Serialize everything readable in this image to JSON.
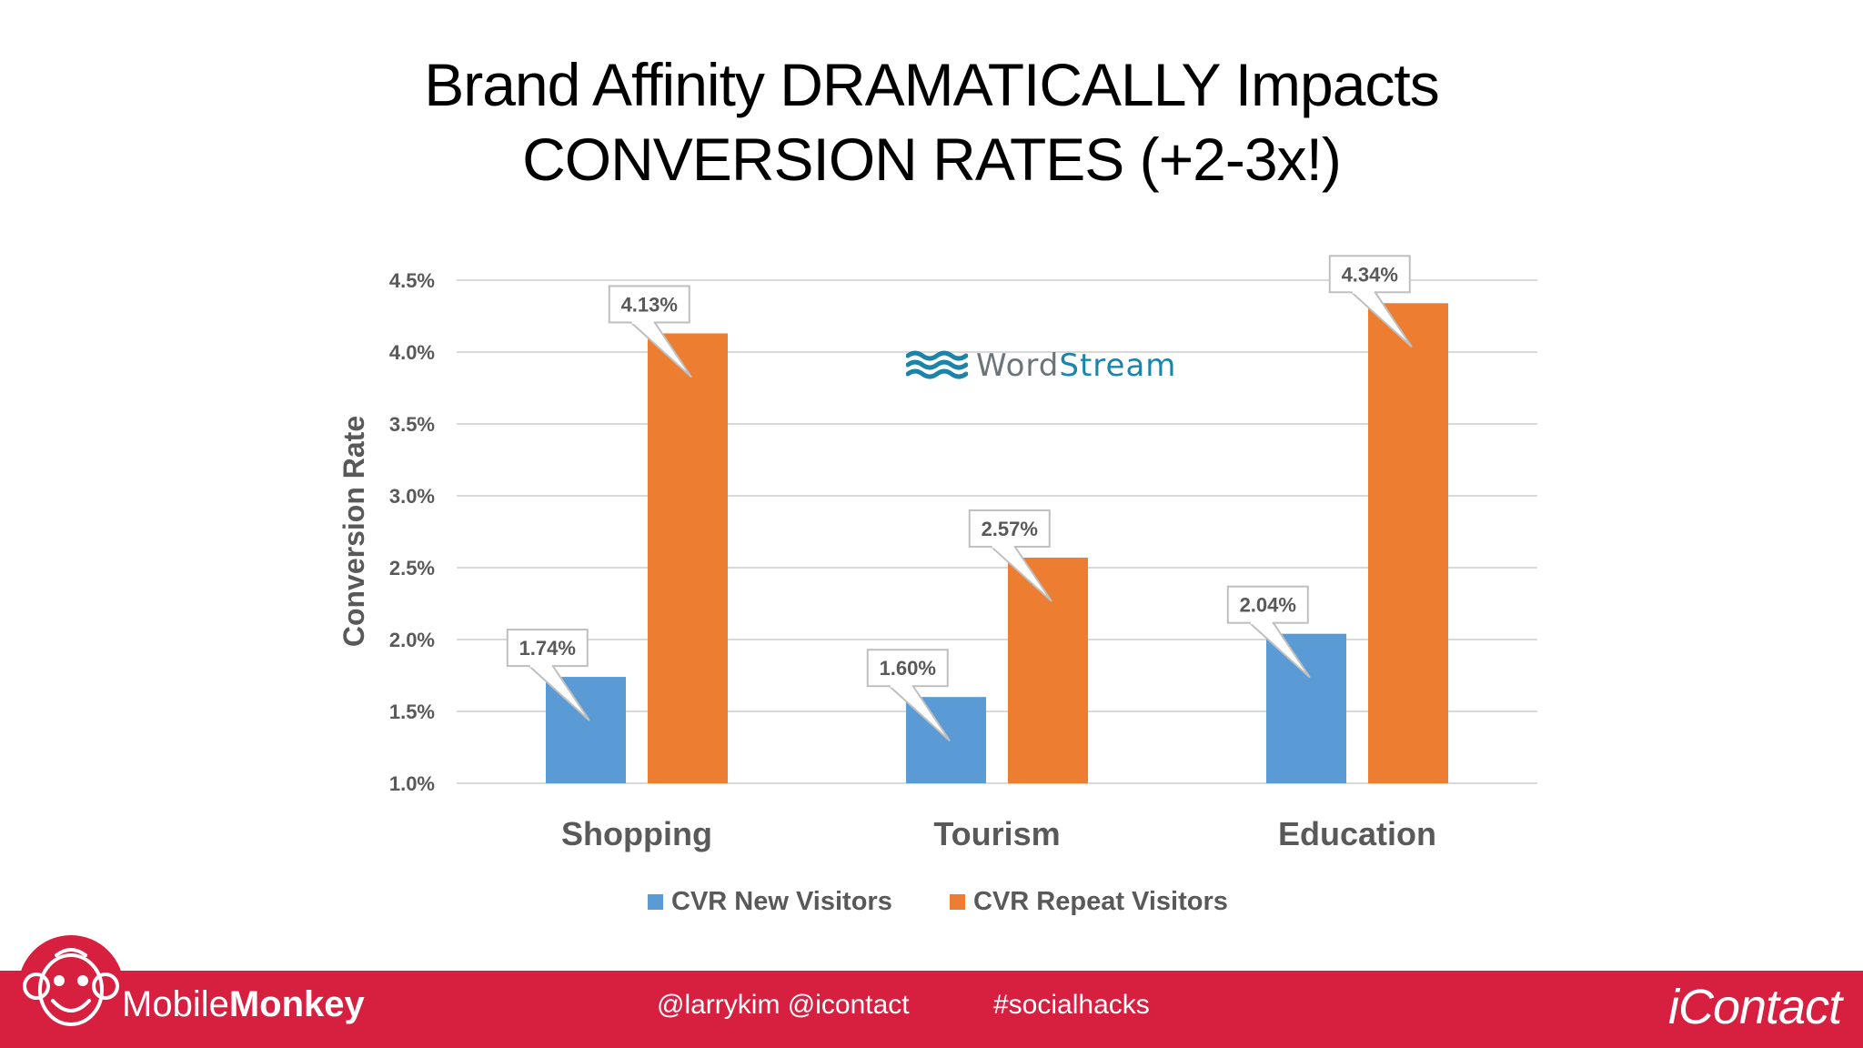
{
  "slide": {
    "title_line1": "Brand Affinity DRAMATICALLY Impacts",
    "title_line2": "CONVERSION RATES (+2-3x!)"
  },
  "watermark": {
    "part1": "Word",
    "part2": "Stream",
    "icon": "wave-icon",
    "colors": {
      "wave": "#1b84a8",
      "word": "#6b7478",
      "stream": "#1b84a8"
    }
  },
  "chart_data": {
    "type": "bar",
    "categories": [
      "Shopping",
      "Tourism",
      "Education"
    ],
    "series": [
      {
        "name": "CVR New Visitors",
        "values": [
          1.74,
          1.6,
          2.04
        ],
        "labels": [
          "1.74%",
          "1.60%",
          "2.04%"
        ],
        "color": "#5b9bd5"
      },
      {
        "name": "CVR Repeat Visitors",
        "values": [
          4.13,
          2.57,
          4.34
        ],
        "labels": [
          "4.13%",
          "2.57%",
          "4.34%"
        ],
        "color": "#ed7d31"
      }
    ],
    "xlabel": "",
    "ylabel": "Conversion Rate",
    "ylim": [
      1.0,
      4.5
    ],
    "yticks": [
      1.0,
      1.5,
      2.0,
      2.5,
      3.0,
      3.5,
      4.0,
      4.5
    ],
    "ytick_labels": [
      "1.0%",
      "1.5%",
      "2.0%",
      "2.5%",
      "3.0%",
      "3.5%",
      "4.0%",
      "4.5%"
    ],
    "grid": true,
    "legend_position": "bottom"
  },
  "footer": {
    "brand_left_light": "Mobile",
    "brand_left_bold": "Monkey",
    "handles": "@larrykim  @icontact",
    "hashtag": "#socialhacks",
    "brand_right": "iContact",
    "background": "#d71f3f"
  }
}
